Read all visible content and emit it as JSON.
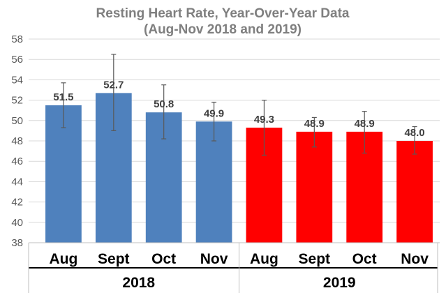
{
  "chart_data": {
    "type": "bar",
    "title_lines": [
      "Resting Heart Rate, Year-Over-Year Data",
      "(Aug-Nov 2018 and 2019)"
    ],
    "ylim": [
      38,
      58
    ],
    "yticks": [
      "38",
      "40",
      "42",
      "44",
      "46",
      "48",
      "50",
      "52",
      "54",
      "56",
      "58"
    ],
    "grid": true,
    "groups": [
      {
        "label": "2018",
        "color": "#4f81bd",
        "categories": [
          "Aug",
          "Sept",
          "Oct",
          "Nov"
        ],
        "values": [
          51.5,
          52.7,
          50.8,
          49.9
        ],
        "labels": [
          "51.5",
          "52.7",
          "50.8",
          "49.9"
        ],
        "error_low": [
          49.3,
          49.0,
          48.2,
          48.0
        ],
        "error_high": [
          53.7,
          56.5,
          53.5,
          51.8
        ]
      },
      {
        "label": "2019",
        "color": "#ff0000",
        "categories": [
          "Aug",
          "Sept",
          "Oct",
          "Nov"
        ],
        "values": [
          49.3,
          48.9,
          48.9,
          48.0
        ],
        "labels": [
          "49.3",
          "48.9",
          "48.9",
          "48.0"
        ],
        "error_low": [
          46.6,
          47.4,
          46.8,
          46.7
        ],
        "error_high": [
          52.0,
          50.3,
          50.9,
          49.4
        ]
      }
    ]
  }
}
